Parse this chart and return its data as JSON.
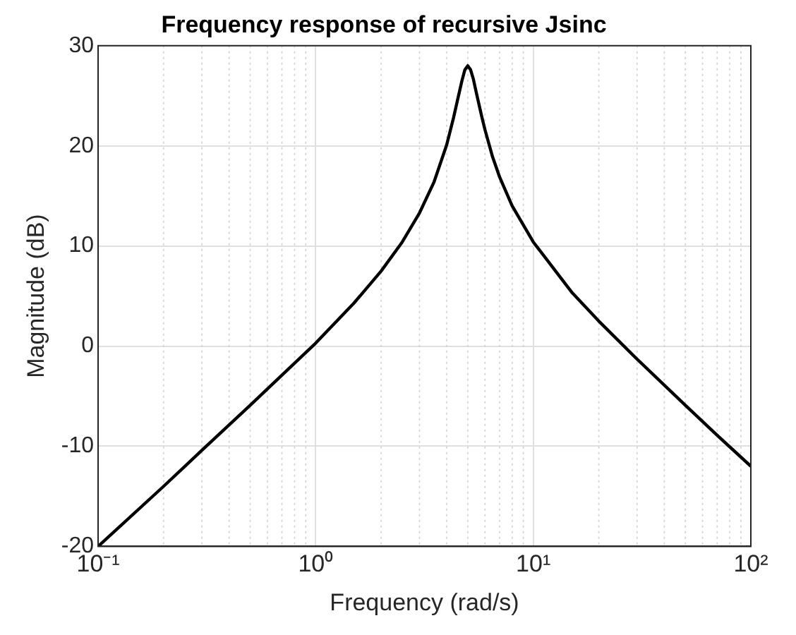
{
  "chart_data": {
    "type": "line",
    "title": "Frequency response of recursive Jsinc",
    "xlabel": "Frequency (rad/s)",
    "ylabel": "Magnitude (dB)",
    "log": "x",
    "grid": true,
    "marker": "none",
    "line_style": "solid",
    "xlim": [
      0.1,
      100
    ],
    "xticks": [
      {
        "value": 0.1,
        "label": "10⁻¹"
      },
      {
        "value": 1,
        "label": "10⁰"
      },
      {
        "value": 10,
        "label": "10¹"
      },
      {
        "value": 100,
        "label": "10²"
      }
    ],
    "ylim": [
      -20,
      30
    ],
    "yticks": [
      -20,
      -10,
      0,
      10,
      20,
      30
    ],
    "series": [
      {
        "color": "#000000",
        "x": [
          0.1,
          0.2,
          0.3,
          0.5,
          0.7,
          1,
          1.5,
          2,
          2.5,
          3,
          3.5,
          4,
          4.3,
          4.5,
          4.7,
          4.85,
          5,
          5.15,
          5.3,
          5.5,
          5.8,
          6,
          6.5,
          7,
          8,
          10,
          15,
          20,
          30,
          50,
          70,
          100
        ],
        "values": [
          -20,
          -14,
          -10.4,
          -5.9,
          -2.9,
          0.3,
          4.3,
          7.5,
          10.4,
          13.3,
          16.4,
          20.1,
          22.8,
          24.7,
          26.5,
          27.6,
          28,
          27.6,
          26.7,
          25.1,
          22.9,
          21.6,
          18.9,
          16.9,
          14,
          10.4,
          5.4,
          2.5,
          -1.3,
          -5.9,
          -8.9,
          -12
        ]
      }
    ]
  }
}
